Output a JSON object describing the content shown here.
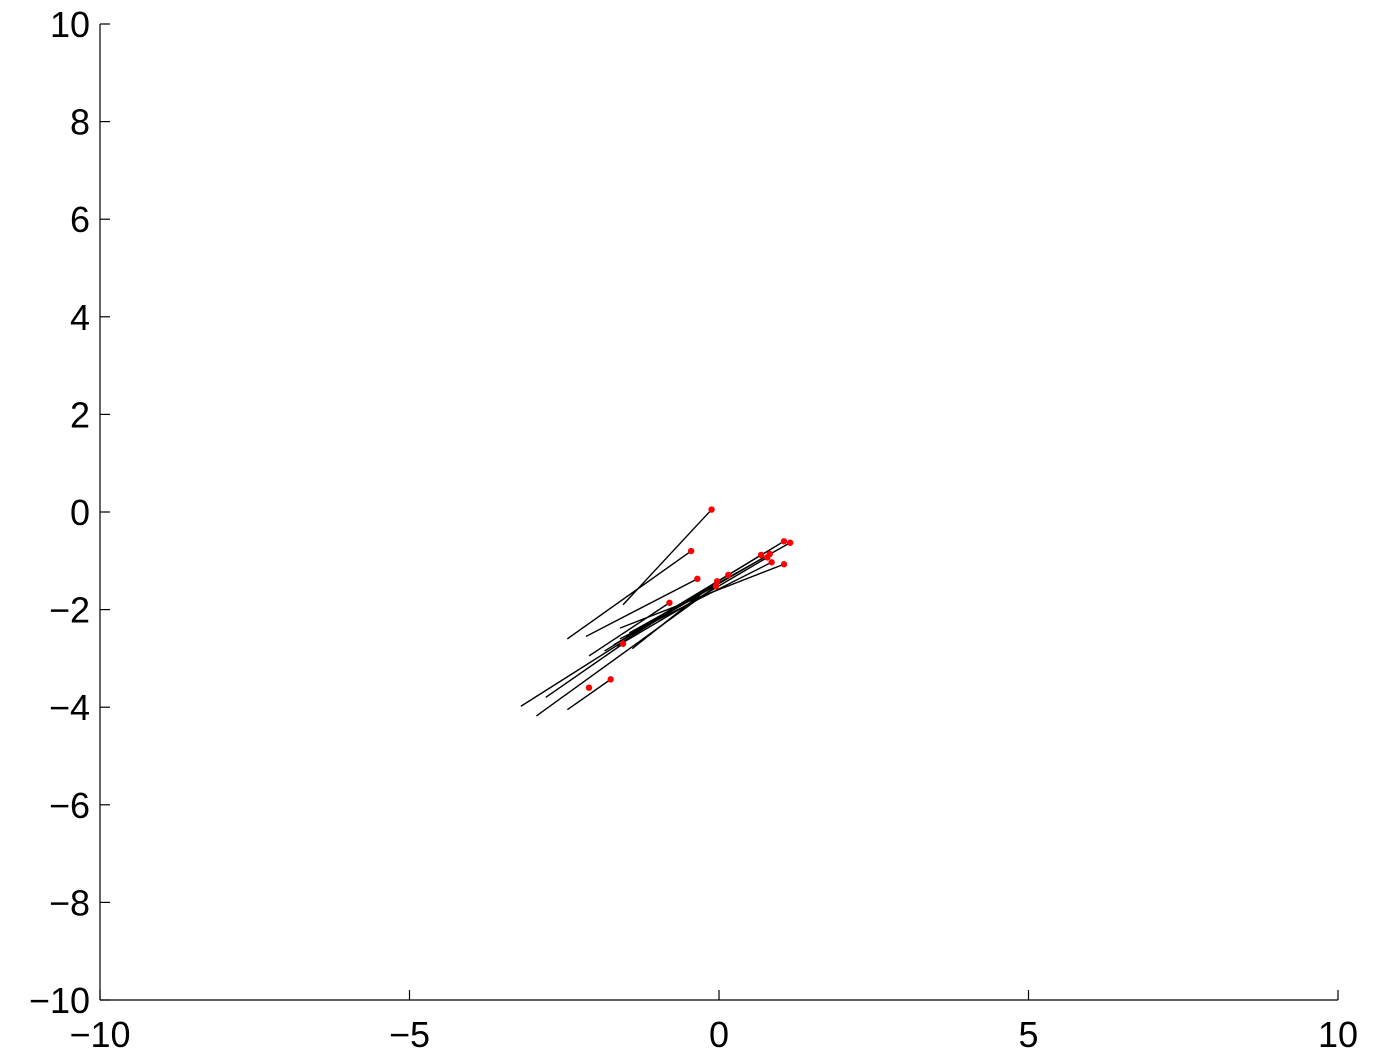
{
  "chart_data": {
    "type": "scatter",
    "title": "",
    "xlabel": "",
    "ylabel": "",
    "xlim": [
      -10,
      10
    ],
    "ylim": [
      -10,
      10
    ],
    "grid": false,
    "x_ticks": [
      -10,
      -5,
      0,
      5,
      10
    ],
    "y_ticks": [
      -10,
      -8,
      -6,
      -4,
      -2,
      0,
      2,
      4,
      6,
      8,
      10
    ],
    "x_tick_labels": [
      "−10",
      "−5",
      "0",
      "5",
      "10"
    ],
    "y_tick_labels": [
      "−10",
      "−8",
      "−6",
      "−4",
      "−2",
      "0",
      "2",
      "4",
      "6",
      "8",
      "10"
    ],
    "point_color": "#ff0000",
    "segment_color": "#000000",
    "series": [
      {
        "kind": "points",
        "points": [
          {
            "x": -0.12,
            "y": 0.05
          },
          {
            "x": -0.45,
            "y": -0.8
          },
          {
            "x": -0.35,
            "y": -1.37
          },
          {
            "x": -0.8,
            "y": -1.86
          },
          {
            "x": -1.55,
            "y": -2.7
          },
          {
            "x": -1.75,
            "y": -3.43
          },
          {
            "x": -2.1,
            "y": -3.6
          },
          {
            "x": 0.15,
            "y": -1.29
          },
          {
            "x": -0.05,
            "y": -1.52
          },
          {
            "x": -0.03,
            "y": -1.42
          },
          {
            "x": 0.68,
            "y": -0.88
          },
          {
            "x": 0.78,
            "y": -0.93
          },
          {
            "x": 0.82,
            "y": -0.86
          },
          {
            "x": 0.85,
            "y": -1.03
          },
          {
            "x": 1.05,
            "y": -0.6
          },
          {
            "x": 1.15,
            "y": -0.63
          },
          {
            "x": 1.05,
            "y": -1.07
          }
        ]
      },
      {
        "kind": "segments",
        "segments": [
          {
            "x1": -0.12,
            "y1": 0.05,
            "x2": -1.55,
            "y2": -1.9
          },
          {
            "x1": -0.45,
            "y1": -0.8,
            "x2": -2.45,
            "y2": -2.6
          },
          {
            "x1": -0.35,
            "y1": -1.37,
            "x2": -2.15,
            "y2": -2.55
          },
          {
            "x1": -0.8,
            "y1": -1.86,
            "x2": -2.1,
            "y2": -2.95
          },
          {
            "x1": -1.55,
            "y1": -2.7,
            "x2": -2.8,
            "y2": -3.8
          },
          {
            "x1": -1.75,
            "y1": -3.43,
            "x2": -2.45,
            "y2": -4.05
          },
          {
            "x1": 0.15,
            "y1": -1.29,
            "x2": -3.2,
            "y2": -3.98
          },
          {
            "x1": -0.05,
            "y1": -1.52,
            "x2": -2.95,
            "y2": -4.18
          },
          {
            "x1": -0.03,
            "y1": -1.42,
            "x2": -1.4,
            "y2": -2.8
          },
          {
            "x1": 0.68,
            "y1": -0.88,
            "x2": -1.85,
            "y2": -2.85
          },
          {
            "x1": 0.78,
            "y1": -0.93,
            "x2": -1.65,
            "y2": -2.75
          },
          {
            "x1": 0.82,
            "y1": -0.86,
            "x2": -1.7,
            "y2": -2.72
          },
          {
            "x1": 0.85,
            "y1": -1.03,
            "x2": -1.6,
            "y2": -2.6
          },
          {
            "x1": 1.05,
            "y1": -0.6,
            "x2": -1.5,
            "y2": -2.55
          },
          {
            "x1": 1.15,
            "y1": -0.63,
            "x2": -1.45,
            "y2": -2.48
          },
          {
            "x1": 1.05,
            "y1": -1.07,
            "x2": -1.6,
            "y2": -2.38
          }
        ]
      }
    ]
  }
}
